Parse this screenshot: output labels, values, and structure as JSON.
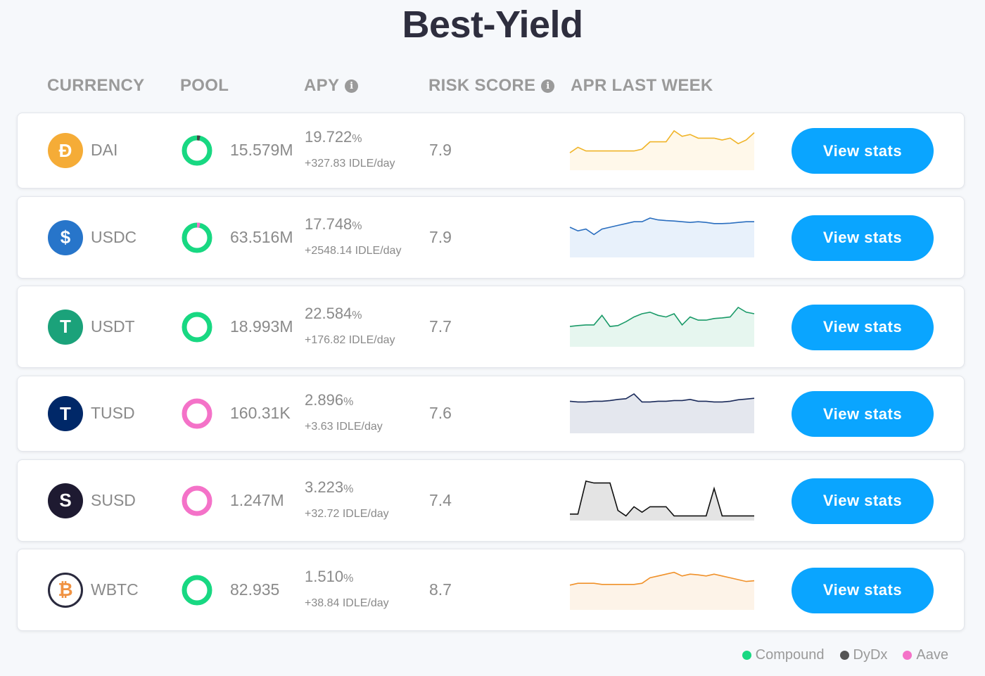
{
  "title": "Best-Yield",
  "headers": {
    "currency": "CURRENCY",
    "pool": "POOL",
    "apy": "APY",
    "risk": "RISK SCORE",
    "apr": "APR LAST WEEK"
  },
  "rows": [
    {
      "currency": "DAI",
      "pool": "15.579M",
      "apy": "19.722",
      "apy_unit": "%",
      "idle": "+327.83 IDLE/day",
      "risk": "7.9",
      "button": "View stats",
      "icon": "dai-icon",
      "coin_color": "#f5ac37",
      "coin_glyph": "Đ",
      "pool_color": "#18d882",
      "pool_secondary": "#444444",
      "spark_color": "#f0b428",
      "spark_fill": "#fff8ea",
      "spark": [
        0.4,
        0.55,
        0.45,
        0.45,
        0.45,
        0.45,
        0.45,
        0.45,
        0.45,
        0.5,
        0.7,
        0.7,
        0.7,
        1.0,
        0.85,
        0.9,
        0.8,
        0.8,
        0.8,
        0.75,
        0.8,
        0.65,
        0.75,
        0.95
      ]
    },
    {
      "currency": "USDC",
      "pool": "63.516M",
      "apy": "17.748",
      "apy_unit": "%",
      "idle": "+2548.14 IDLE/day",
      "risk": "7.9",
      "button": "View stats",
      "icon": "usdc-icon",
      "coin_color": "#2775ca",
      "coin_glyph": "$",
      "pool_color": "#18d882",
      "pool_secondary": "#f472c8",
      "spark_color": "#2a6ebf",
      "spark_fill": "#e8f1fb",
      "spark": [
        0.75,
        0.65,
        0.7,
        0.55,
        0.7,
        0.75,
        0.8,
        0.85,
        0.9,
        0.9,
        1.0,
        0.95,
        0.93,
        0.92,
        0.9,
        0.88,
        0.9,
        0.88,
        0.85,
        0.85,
        0.86,
        0.88,
        0.9,
        0.9
      ]
    },
    {
      "currency": "USDT",
      "pool": "18.993M",
      "apy": "22.584",
      "apy_unit": "%",
      "idle": "+176.82 IDLE/day",
      "risk": "7.7",
      "button": "View stats",
      "icon": "usdt-icon",
      "coin_color": "#1ba27a",
      "coin_glyph": "T",
      "pool_color": "#18d882",
      "pool_secondary": "#18d882",
      "spark_color": "#1a9a68",
      "spark_fill": "#e6f6ef",
      "spark": [
        0.55,
        0.58,
        0.6,
        0.6,
        0.9,
        0.55,
        0.58,
        0.7,
        0.85,
        0.95,
        1.0,
        0.9,
        0.85,
        0.95,
        0.6,
        0.85,
        0.75,
        0.75,
        0.8,
        0.82,
        0.85,
        1.15,
        1.0,
        0.95
      ]
    },
    {
      "currency": "TUSD",
      "pool": "160.31K",
      "apy": "2.896",
      "apy_unit": "%",
      "idle": "+3.63 IDLE/day",
      "risk": "7.6",
      "button": "View stats",
      "icon": "tusd-icon",
      "coin_color": "#002868",
      "coin_glyph": "T",
      "pool_color": "#f472c8",
      "pool_secondary": "#f472c8",
      "spark_color": "#1a2a5a",
      "spark_fill": "#e4e7ee",
      "spark": [
        0.8,
        0.78,
        0.78,
        0.8,
        0.8,
        0.82,
        0.85,
        0.87,
        1.0,
        0.78,
        0.78,
        0.8,
        0.8,
        0.82,
        0.82,
        0.85,
        0.8,
        0.8,
        0.78,
        0.78,
        0.8,
        0.84,
        0.86,
        0.88
      ]
    },
    {
      "currency": "SUSD",
      "pool": "1.247M",
      "apy": "3.223",
      "apy_unit": "%",
      "idle": "+32.72 IDLE/day",
      "risk": "7.4",
      "button": "View stats",
      "icon": "susd-icon",
      "coin_color": "#1e1a31",
      "coin_glyph": "S",
      "pool_color": "#f472c8",
      "pool_secondary": "#f472c8",
      "spark_color": "#111111",
      "spark_fill": "#e4e4e4",
      "spark": [
        0.1,
        0.1,
        1.0,
        0.95,
        0.95,
        0.95,
        0.2,
        0.05,
        0.3,
        0.15,
        0.3,
        0.3,
        0.3,
        0.05,
        0.05,
        0.05,
        0.05,
        0.05,
        0.8,
        0.05,
        0.05,
        0.05,
        0.05,
        0.05
      ]
    },
    {
      "currency": "WBTC",
      "pool": "82.935",
      "apy": "1.510",
      "apy_unit": "%",
      "idle": "+38.84 IDLE/day",
      "risk": "8.7",
      "button": "View stats",
      "icon": "wbtc-icon",
      "coin_color": "#f09242",
      "coin_glyph": "₿",
      "pool_color": "#18d882",
      "pool_secondary": "#18d882",
      "spark_color": "#f0912a",
      "spark_fill": "#fdf3e8",
      "spark": [
        0.6,
        0.65,
        0.65,
        0.65,
        0.62,
        0.62,
        0.62,
        0.62,
        0.62,
        0.65,
        0.8,
        0.85,
        0.9,
        0.95,
        0.85,
        0.9,
        0.88,
        0.85,
        0.9,
        0.85,
        0.8,
        0.75,
        0.7,
        0.72
      ]
    }
  ],
  "legend": [
    {
      "label": "Compound",
      "color": "#18d882"
    },
    {
      "label": "DyDx",
      "color": "#555555"
    },
    {
      "label": "Aave",
      "color": "#f472c8"
    }
  ]
}
